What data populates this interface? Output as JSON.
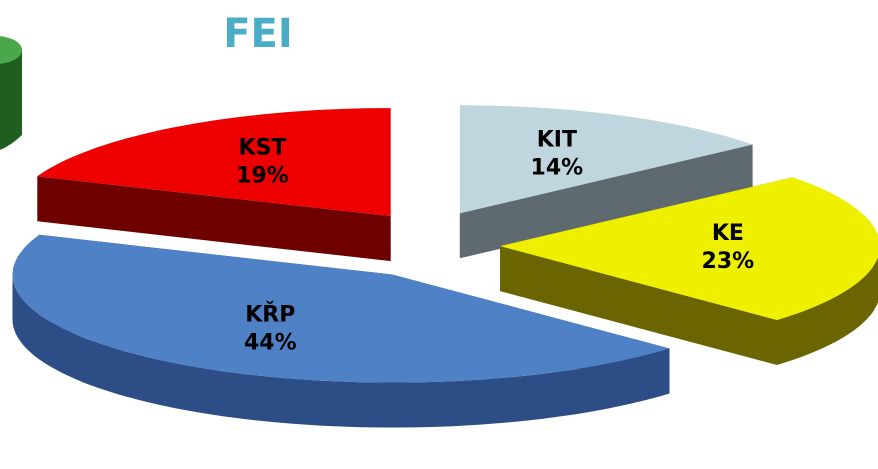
{
  "chart_data": {
    "type": "pie3d",
    "title": "FEI",
    "categories": [
      "KIT",
      "KE",
      "KŘP",
      "KST"
    ],
    "values": [
      14,
      23,
      44,
      19
    ],
    "value_labels": [
      "14%",
      "23%",
      "44%",
      "19%"
    ],
    "colors": [
      "#c0d6de",
      "#eef000",
      "#4f81c7",
      "#ee0000"
    ],
    "side_colors": [
      "#5e6a70",
      "#6a6500",
      "#2c4d86",
      "#6e0000"
    ]
  }
}
